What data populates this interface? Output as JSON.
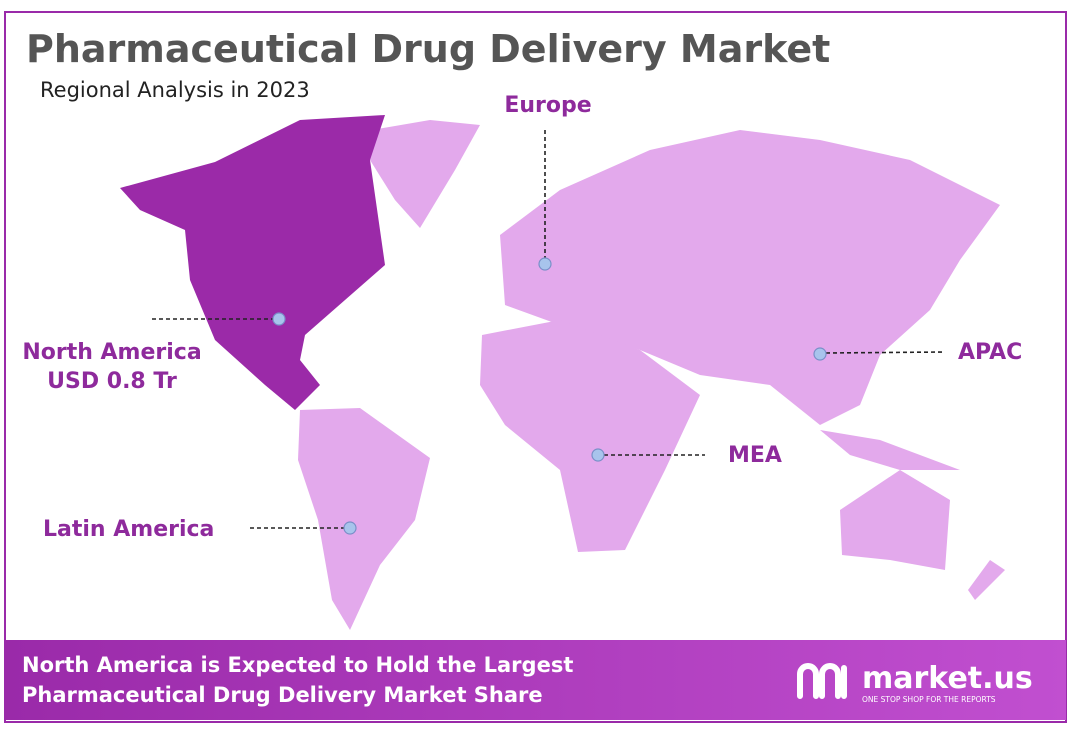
{
  "header": {
    "title": "Pharmaceutical Drug Delivery Market",
    "subtitle": "Regional Analysis in 2023"
  },
  "regions": [
    {
      "label": "Europe"
    },
    {
      "label": "North America",
      "value": "USD 0.8 Tr"
    },
    {
      "label": "APAC"
    },
    {
      "label": "MEA"
    },
    {
      "label": "Latin America"
    }
  ],
  "footer": {
    "lines": [
      "North America is Expected to Hold the Largest",
      "Pharmaceutical Drug Delivery Market Share"
    ],
    "logo": {
      "name": "market.us",
      "tagline": "ONE STOP SHOP FOR THE REPORTS"
    }
  }
}
